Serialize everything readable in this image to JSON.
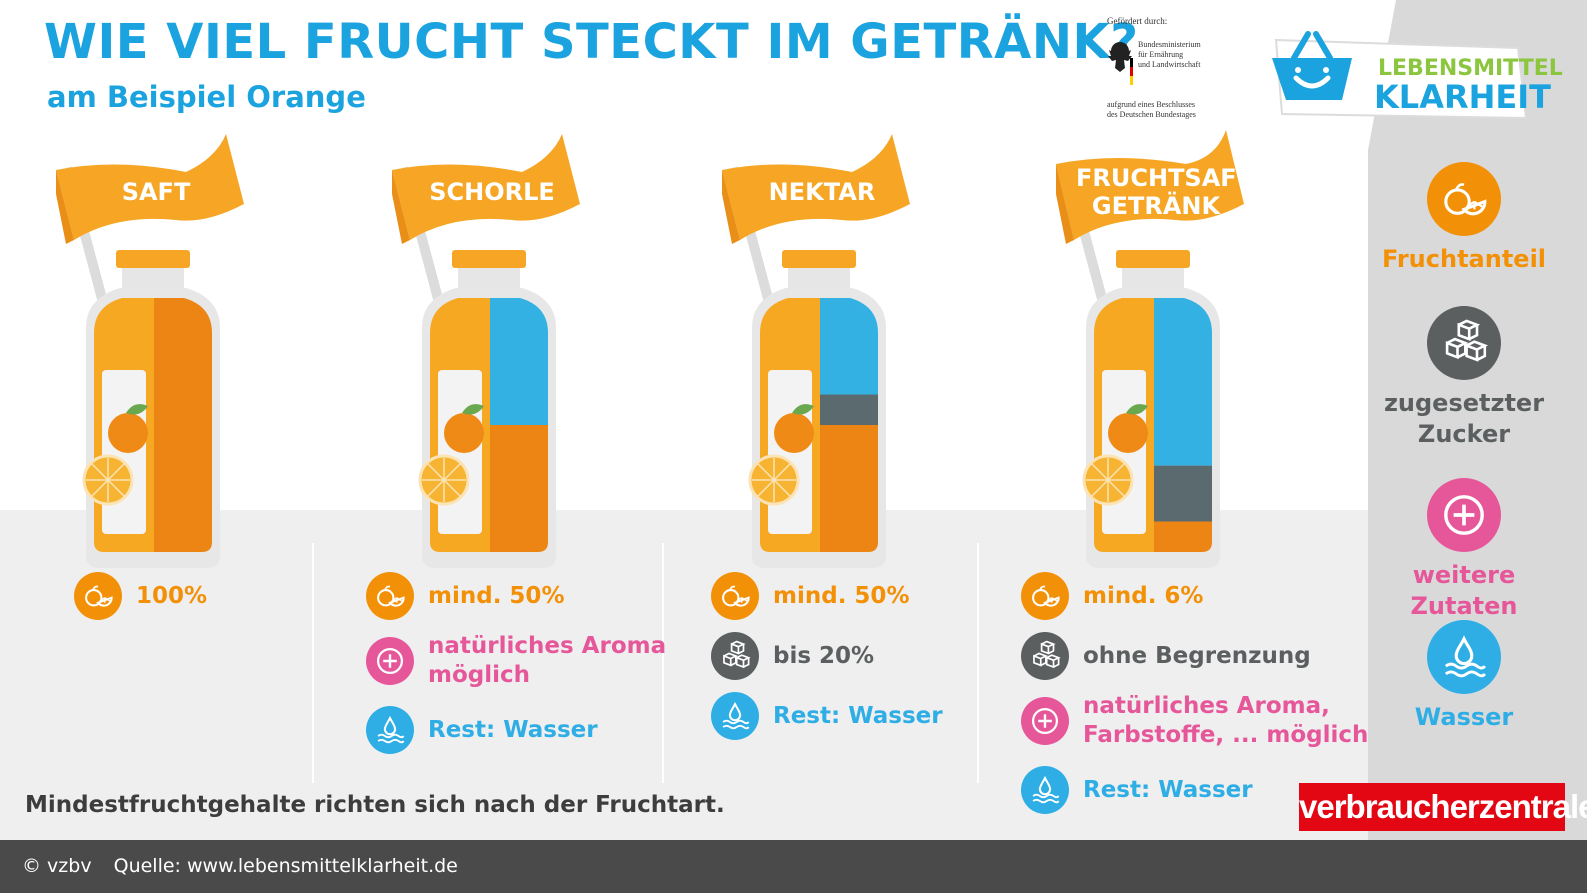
{
  "title": "WIE VIEL FRUCHT STECKT IM GETRÄNK?",
  "subtitle": "am Beispiel Orange",
  "sponsor": {
    "line1": "Gefördert durch:",
    "ministry": "Bundesministerium\nfür Ernährung\nund Landwirtschaft",
    "decision": "aufgrund eines Beschlusses\ndes Deutschen Bundestages"
  },
  "logo": {
    "line1": "LEBENSMITTEL",
    "line2": "KLARHEIT"
  },
  "drinks": [
    {
      "flag": "SAFT",
      "fill": {
        "fruit": 1.0,
        "sugar": 0,
        "water": 0
      },
      "rows": [
        {
          "icon": "orange-slice-icon",
          "color": "orange",
          "text": "100%"
        }
      ]
    },
    {
      "flag": "SCHORLE",
      "fill": {
        "fruit": 0.5,
        "sugar": 0,
        "water": 0.5
      },
      "rows": [
        {
          "icon": "orange-slice-icon",
          "color": "orange",
          "text": "mind. 50%"
        },
        {
          "icon": "plus-icon",
          "color": "pink",
          "text": "natürliches Aroma\nmöglich"
        },
        {
          "icon": "water-drop-icon",
          "color": "blue",
          "text": "Rest: Wasser"
        }
      ]
    },
    {
      "flag": "NEKTAR",
      "fill": {
        "fruit": 0.5,
        "sugar": 0.12,
        "water": 0.38
      },
      "rows": [
        {
          "icon": "orange-slice-icon",
          "color": "orange",
          "text": "mind. 50%"
        },
        {
          "icon": "sugar-cubes-icon",
          "color": "gray",
          "text": "bis 20%"
        },
        {
          "icon": "water-drop-icon",
          "color": "blue",
          "text": "Rest: Wasser"
        }
      ]
    },
    {
      "flag": "FRUCHTSAFT-\nGETRÄNK",
      "fill": {
        "fruit": 0.12,
        "sugar": 0.22,
        "water": 0.66
      },
      "rows": [
        {
          "icon": "orange-slice-icon",
          "color": "orange",
          "text": "mind. 6%"
        },
        {
          "icon": "sugar-cubes-icon",
          "color": "gray",
          "text": "ohne Begrenzung"
        },
        {
          "icon": "plus-icon",
          "color": "pink",
          "text": "natürliches Aroma,\nFarbstoffe, ... möglich"
        },
        {
          "icon": "water-drop-icon",
          "color": "blue",
          "text": "Rest: Wasser"
        }
      ]
    }
  ],
  "legend": [
    {
      "icon": "orange-slice-icon",
      "color": "orange",
      "label": "Fruchtanteil"
    },
    {
      "icon": "sugar-cubes-icon",
      "color": "gray",
      "label": "zugesetzter\nZucker"
    },
    {
      "icon": "plus-icon",
      "color": "pink",
      "label": "weitere Zutaten"
    },
    {
      "icon": "water-drop-icon",
      "color": "blue",
      "label": "Wasser"
    }
  ],
  "note": "Mindestfruchtgehalte richten sich nach der Fruchtart.",
  "brand": "verbraucherzentrale",
  "footer": {
    "copyright": "© vzbv",
    "source": "Quelle: www.lebensmittelklarheit.de"
  },
  "colors": {
    "orange": "#f29108",
    "gray": "#5b5f60",
    "pink": "#e6579a",
    "blue": "#2eaee5",
    "title": "#1aa3de",
    "fruit_fill": "#ec8514",
    "water_fill": "#33b1e3",
    "sugar_fill": "#5b6a6e"
  }
}
